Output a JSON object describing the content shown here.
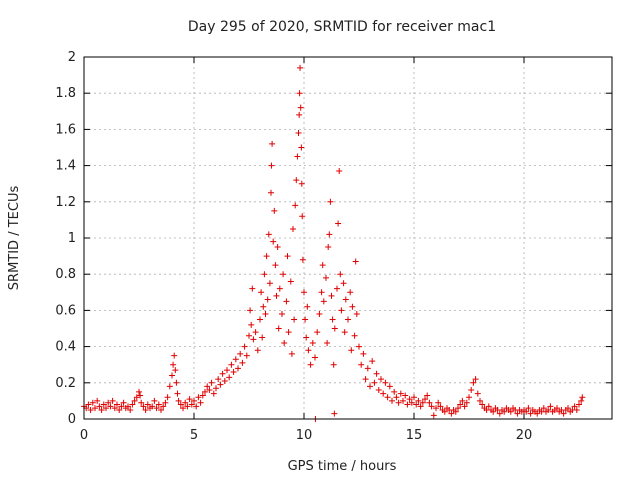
{
  "chart_data": {
    "type": "scatter",
    "title": "Day 295 of 2020, SRMTID for receiver mac1",
    "xlabel": "GPS time / hours",
    "ylabel": "SRMTID / TECUs",
    "xlim": [
      0,
      24
    ],
    "ylim": [
      0,
      2
    ],
    "grid": true,
    "marker": "+",
    "color": "#e00000",
    "x_ticks": [
      0,
      5,
      10,
      15,
      20
    ],
    "x_tick_labels": [
      "0",
      "5",
      "10",
      "15",
      "20"
    ],
    "y_ticks": [
      0,
      0.2,
      0.4,
      0.6,
      0.8,
      1.0,
      1.2,
      1.4,
      1.6,
      1.8,
      2.0
    ],
    "y_tick_labels": [
      "0",
      "0.2",
      "0.4",
      "0.6",
      "0.8",
      "1",
      "1.2",
      "1.4",
      "1.6",
      "1.8",
      "2"
    ],
    "series": [
      {
        "name": "mac1",
        "points": [
          [
            0.0,
            0.07
          ],
          [
            0.1,
            0.06
          ],
          [
            0.2,
            0.08
          ],
          [
            0.3,
            0.05
          ],
          [
            0.4,
            0.09
          ],
          [
            0.5,
            0.06
          ],
          [
            0.6,
            0.1
          ],
          [
            0.7,
            0.07
          ],
          [
            0.8,
            0.05
          ],
          [
            0.9,
            0.08
          ],
          [
            1.0,
            0.06
          ],
          [
            1.1,
            0.09
          ],
          [
            1.2,
            0.07
          ],
          [
            1.3,
            0.1
          ],
          [
            1.4,
            0.06
          ],
          [
            1.5,
            0.08
          ],
          [
            1.6,
            0.05
          ],
          [
            1.7,
            0.07
          ],
          [
            1.8,
            0.09
          ],
          [
            1.9,
            0.06
          ],
          [
            2.0,
            0.07
          ],
          [
            2.1,
            0.05
          ],
          [
            2.2,
            0.08
          ],
          [
            2.3,
            0.1
          ],
          [
            2.4,
            0.12
          ],
          [
            2.5,
            0.15
          ],
          [
            2.55,
            0.13
          ],
          [
            2.6,
            0.09
          ],
          [
            2.7,
            0.07
          ],
          [
            2.8,
            0.05
          ],
          [
            2.9,
            0.08
          ],
          [
            3.0,
            0.06
          ],
          [
            3.1,
            0.07
          ],
          [
            3.2,
            0.1
          ],
          [
            3.3,
            0.06
          ],
          [
            3.4,
            0.08
          ],
          [
            3.5,
            0.05
          ],
          [
            3.6,
            0.07
          ],
          [
            3.7,
            0.09
          ],
          [
            3.8,
            0.12
          ],
          [
            3.9,
            0.18
          ],
          [
            4.0,
            0.24
          ],
          [
            4.05,
            0.3
          ],
          [
            4.1,
            0.35
          ],
          [
            4.15,
            0.27
          ],
          [
            4.2,
            0.2
          ],
          [
            4.25,
            0.14
          ],
          [
            4.3,
            0.1
          ],
          [
            4.4,
            0.08
          ],
          [
            4.5,
            0.06
          ],
          [
            4.6,
            0.09
          ],
          [
            4.7,
            0.07
          ],
          [
            4.8,
            0.11
          ],
          [
            4.9,
            0.08
          ],
          [
            5.0,
            0.1
          ],
          [
            5.1,
            0.07
          ],
          [
            5.2,
            0.12
          ],
          [
            5.3,
            0.09
          ],
          [
            5.4,
            0.13
          ],
          [
            5.5,
            0.15
          ],
          [
            5.6,
            0.18
          ],
          [
            5.7,
            0.16
          ],
          [
            5.8,
            0.2
          ],
          [
            5.9,
            0.14
          ],
          [
            6.0,
            0.17
          ],
          [
            6.1,
            0.22
          ],
          [
            6.2,
            0.19
          ],
          [
            6.3,
            0.25
          ],
          [
            6.4,
            0.21
          ],
          [
            6.5,
            0.27
          ],
          [
            6.6,
            0.23
          ],
          [
            6.7,
            0.3
          ],
          [
            6.8,
            0.26
          ],
          [
            6.9,
            0.33
          ],
          [
            7.0,
            0.28
          ],
          [
            7.1,
            0.36
          ],
          [
            7.2,
            0.31
          ],
          [
            7.3,
            0.4
          ],
          [
            7.4,
            0.35
          ],
          [
            7.5,
            0.46
          ],
          [
            7.55,
            0.6
          ],
          [
            7.6,
            0.52
          ],
          [
            7.65,
            0.72
          ],
          [
            7.7,
            0.44
          ],
          [
            7.8,
            0.48
          ],
          [
            7.9,
            0.38
          ],
          [
            8.0,
            0.55
          ],
          [
            8.05,
            0.7
          ],
          [
            8.1,
            0.45
          ],
          [
            8.15,
            0.62
          ],
          [
            8.2,
            0.8
          ],
          [
            8.25,
            0.58
          ],
          [
            8.3,
            0.9
          ],
          [
            8.35,
            0.66
          ],
          [
            8.4,
            1.02
          ],
          [
            8.45,
            0.75
          ],
          [
            8.5,
            1.25
          ],
          [
            8.52,
            1.4
          ],
          [
            8.55,
            1.52
          ],
          [
            8.6,
            0.98
          ],
          [
            8.65,
            1.15
          ],
          [
            8.7,
            0.85
          ],
          [
            8.75,
            0.68
          ],
          [
            8.8,
            0.95
          ],
          [
            8.85,
            0.5
          ],
          [
            8.9,
            0.72
          ],
          [
            9.0,
            0.58
          ],
          [
            9.05,
            0.8
          ],
          [
            9.1,
            0.42
          ],
          [
            9.2,
            0.65
          ],
          [
            9.25,
            0.9
          ],
          [
            9.3,
            0.48
          ],
          [
            9.4,
            0.76
          ],
          [
            9.45,
            0.36
          ],
          [
            9.5,
            1.05
          ],
          [
            9.55,
            0.55
          ],
          [
            9.6,
            1.18
          ],
          [
            9.65,
            1.32
          ],
          [
            9.7,
            1.45
          ],
          [
            9.75,
            1.58
          ],
          [
            9.78,
            1.68
          ],
          [
            9.8,
            1.8
          ],
          [
            9.82,
            1.94
          ],
          [
            9.85,
            1.72
          ],
          [
            9.88,
            1.5
          ],
          [
            9.9,
            1.3
          ],
          [
            9.92,
            1.12
          ],
          [
            9.95,
            0.88
          ],
          [
            10.0,
            0.7
          ],
          [
            10.05,
            0.55
          ],
          [
            10.1,
            0.45
          ],
          [
            10.15,
            0.62
          ],
          [
            10.2,
            0.38
          ],
          [
            10.3,
            0.3
          ],
          [
            10.4,
            0.42
          ],
          [
            10.5,
            0.34
          ],
          [
            10.52,
            0.0
          ],
          [
            10.6,
            0.48
          ],
          [
            10.7,
            0.58
          ],
          [
            10.8,
            0.7
          ],
          [
            10.85,
            0.85
          ],
          [
            10.9,
            0.65
          ],
          [
            11.0,
            0.78
          ],
          [
            11.05,
            0.42
          ],
          [
            11.1,
            0.95
          ],
          [
            11.15,
            1.02
          ],
          [
            11.2,
            1.2
          ],
          [
            11.25,
            0.68
          ],
          [
            11.3,
            0.55
          ],
          [
            11.35,
            0.3
          ],
          [
            11.38,
            0.03
          ],
          [
            11.4,
            0.5
          ],
          [
            11.5,
            0.72
          ],
          [
            11.55,
            1.08
          ],
          [
            11.6,
            1.37
          ],
          [
            11.65,
            0.8
          ],
          [
            11.7,
            0.6
          ],
          [
            11.8,
            0.75
          ],
          [
            11.85,
            0.48
          ],
          [
            11.9,
            0.66
          ],
          [
            12.0,
            0.55
          ],
          [
            12.1,
            0.7
          ],
          [
            12.15,
            0.38
          ],
          [
            12.2,
            0.62
          ],
          [
            12.3,
            0.46
          ],
          [
            12.35,
            0.87
          ],
          [
            12.4,
            0.58
          ],
          [
            12.5,
            0.4
          ],
          [
            12.6,
            0.3
          ],
          [
            12.7,
            0.36
          ],
          [
            12.8,
            0.22
          ],
          [
            12.9,
            0.28
          ],
          [
            13.0,
            0.18
          ],
          [
            13.1,
            0.32
          ],
          [
            13.2,
            0.2
          ],
          [
            13.3,
            0.25
          ],
          [
            13.4,
            0.16
          ],
          [
            13.5,
            0.22
          ],
          [
            13.6,
            0.14
          ],
          [
            13.7,
            0.2
          ],
          [
            13.8,
            0.12
          ],
          [
            13.9,
            0.18
          ],
          [
            14.0,
            0.1
          ],
          [
            14.1,
            0.15
          ],
          [
            14.2,
            0.12
          ],
          [
            14.3,
            0.09
          ],
          [
            14.4,
            0.14
          ],
          [
            14.5,
            0.1
          ],
          [
            14.6,
            0.13
          ],
          [
            14.7,
            0.08
          ],
          [
            14.8,
            0.11
          ],
          [
            14.9,
            0.09
          ],
          [
            15.0,
            0.12
          ],
          [
            15.1,
            0.08
          ],
          [
            15.2,
            0.1
          ],
          [
            15.3,
            0.07
          ],
          [
            15.4,
            0.09
          ],
          [
            15.5,
            0.11
          ],
          [
            15.6,
            0.13
          ],
          [
            15.7,
            0.09
          ],
          [
            15.8,
            0.07
          ],
          [
            15.9,
            0.02
          ],
          [
            16.0,
            0.06
          ],
          [
            16.1,
            0.09
          ],
          [
            16.2,
            0.07
          ],
          [
            16.3,
            0.05
          ],
          [
            16.4,
            0.04
          ],
          [
            16.5,
            0.06
          ],
          [
            16.6,
            0.05
          ],
          [
            16.7,
            0.03
          ],
          [
            16.8,
            0.05
          ],
          [
            16.9,
            0.04
          ],
          [
            17.0,
            0.06
          ],
          [
            17.1,
            0.08
          ],
          [
            17.2,
            0.1
          ],
          [
            17.3,
            0.07
          ],
          [
            17.4,
            0.09
          ],
          [
            17.5,
            0.12
          ],
          [
            17.6,
            0.16
          ],
          [
            17.7,
            0.2
          ],
          [
            17.8,
            0.22
          ],
          [
            17.9,
            0.14
          ],
          [
            18.0,
            0.1
          ],
          [
            18.1,
            0.08
          ],
          [
            18.2,
            0.06
          ],
          [
            18.3,
            0.05
          ],
          [
            18.4,
            0.07
          ],
          [
            18.5,
            0.05
          ],
          [
            18.6,
            0.04
          ],
          [
            18.7,
            0.06
          ],
          [
            18.8,
            0.05
          ],
          [
            18.9,
            0.03
          ],
          [
            19.0,
            0.05
          ],
          [
            19.1,
            0.04
          ],
          [
            19.2,
            0.06
          ],
          [
            19.3,
            0.05
          ],
          [
            19.4,
            0.04
          ],
          [
            19.5,
            0.06
          ],
          [
            19.6,
            0.05
          ],
          [
            19.7,
            0.03
          ],
          [
            19.8,
            0.05
          ],
          [
            19.9,
            0.04
          ],
          [
            20.0,
            0.05
          ],
          [
            20.1,
            0.04
          ],
          [
            20.2,
            0.06
          ],
          [
            20.3,
            0.03
          ],
          [
            20.4,
            0.05
          ],
          [
            20.5,
            0.04
          ],
          [
            20.6,
            0.03
          ],
          [
            20.7,
            0.05
          ],
          [
            20.8,
            0.04
          ],
          [
            20.9,
            0.06
          ],
          [
            21.0,
            0.04
          ],
          [
            21.1,
            0.05
          ],
          [
            21.2,
            0.07
          ],
          [
            21.3,
            0.04
          ],
          [
            21.4,
            0.05
          ],
          [
            21.5,
            0.06
          ],
          [
            21.6,
            0.04
          ],
          [
            21.7,
            0.05
          ],
          [
            21.8,
            0.03
          ],
          [
            21.9,
            0.05
          ],
          [
            22.0,
            0.06
          ],
          [
            22.1,
            0.04
          ],
          [
            22.2,
            0.05
          ],
          [
            22.3,
            0.07
          ],
          [
            22.4,
            0.05
          ],
          [
            22.5,
            0.08
          ],
          [
            22.6,
            0.1
          ],
          [
            22.65,
            0.12
          ]
        ]
      }
    ]
  }
}
